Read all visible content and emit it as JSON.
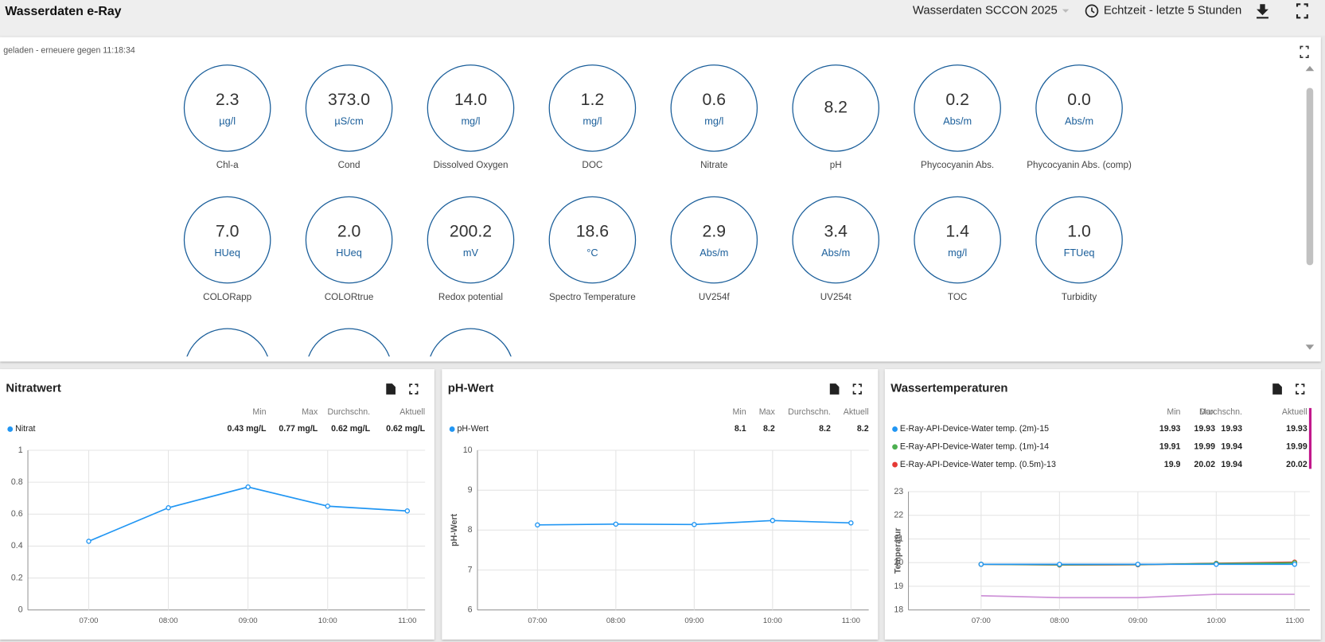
{
  "header": {
    "title": "Wasserdaten e-Ray",
    "dashboard": "Wasserdaten SCCON 2025",
    "time_range": "Echtzeit - letzte 5 Stunden"
  },
  "gauge_panel": {
    "status": "geladen - erneuere gegen 11:18:34",
    "gauges": [
      {
        "value": "2.3",
        "unit": "µg/l",
        "label": "Chl-a"
      },
      {
        "value": "373.0",
        "unit": "µS/cm",
        "label": "Cond"
      },
      {
        "value": "14.0",
        "unit": "mg/l",
        "label": "Dissolved Oxygen"
      },
      {
        "value": "1.2",
        "unit": "mg/l",
        "label": "DOC"
      },
      {
        "value": "0.6",
        "unit": "mg/l",
        "label": "Nitrate"
      },
      {
        "value": "8.2",
        "label": "pH"
      },
      {
        "value": "0.2",
        "unit": "Abs/m",
        "label": "Phycocyanin Abs."
      },
      {
        "value": "0.0",
        "unit": "Abs/m",
        "label": "Phycocyanin Abs. (comp)"
      },
      {
        "value": "7.0",
        "unit": "HUeq",
        "label": "COLORapp"
      },
      {
        "value": "2.0",
        "unit": "HUeq",
        "label": "COLORtrue"
      },
      {
        "value": "200.2",
        "unit": "mV",
        "label": "Redox potential"
      },
      {
        "value": "18.6",
        "unit": "°C",
        "label": "Spectro Temperature"
      },
      {
        "value": "2.9",
        "unit": "Abs/m",
        "label": "UV254f"
      },
      {
        "value": "3.4",
        "unit": "Abs/m",
        "label": "UV254t"
      },
      {
        "value": "1.4",
        "unit": "mg/l",
        "label": "TOC"
      },
      {
        "value": "1.0",
        "unit": "FTUeq",
        "label": "Turbidity"
      }
    ]
  },
  "chart_data": [
    {
      "type": "line",
      "title": "Nitratwert",
      "categories": [
        "07:00",
        "08:00",
        "09:00",
        "10:00",
        "11:00"
      ],
      "ylim": [
        0,
        1
      ],
      "yticks": [
        0,
        0.2,
        0.4,
        0.6,
        0.8,
        1
      ],
      "grid": true,
      "stats_headers": [
        "Min",
        "Max",
        "Durchschn.",
        "Aktuell"
      ],
      "series": [
        {
          "name": "Nitrat",
          "color": "#2196f3",
          "markers": true,
          "values": [
            0.43,
            0.64,
            0.77,
            0.65,
            0.62
          ],
          "stats": [
            "0.43 mg/L",
            "0.77 mg/L",
            "0.62 mg/L",
            "0.62 mg/L"
          ]
        }
      ]
    },
    {
      "type": "line",
      "title": "pH-Wert",
      "y_label": "pH-Wert",
      "categories": [
        "07:00",
        "08:00",
        "09:00",
        "10:00",
        "11:00"
      ],
      "ylim": [
        6,
        10
      ],
      "yticks": [
        6,
        7,
        8,
        9,
        10
      ],
      "grid": true,
      "stats_headers": [
        "Min",
        "Max",
        "Durchschn.",
        "Aktuell"
      ],
      "series": [
        {
          "name": "pH-Wert",
          "color": "#2196f3",
          "markers": true,
          "values": [
            8.13,
            8.15,
            8.14,
            8.24,
            8.18
          ],
          "stats": [
            "8.1",
            "8.2",
            "8.2",
            "8.2"
          ]
        }
      ]
    },
    {
      "type": "line",
      "title": "Wassertemperaturen",
      "y_label": "Temperatur",
      "categories": [
        "07:00",
        "08:00",
        "09:00",
        "10:00",
        "11:00"
      ],
      "ylim": [
        18,
        23
      ],
      "yticks": [
        18,
        19,
        20,
        21,
        22,
        23
      ],
      "grid": true,
      "stats_headers": [
        "Min",
        "Max",
        "Durchschn.",
        "Aktuell"
      ],
      "series": [
        {
          "name": "E-Ray-API-Device-Water temp. (2m)-15",
          "color": "#2196f3",
          "markers": true,
          "values": [
            19.93,
            19.93,
            19.93,
            19.93,
            19.93
          ],
          "stats": [
            "19.93",
            "19.93",
            "19.93",
            "19.93"
          ]
        },
        {
          "name": "E-Ray-API-Device-Water temp. (1m)-14",
          "color": "#4caf50",
          "markers": true,
          "values": [
            19.93,
            19.91,
            19.92,
            19.96,
            19.99
          ],
          "stats": [
            "19.91",
            "19.99",
            "19.94",
            "19.99"
          ]
        },
        {
          "name": "E-Ray-API-Device-Water temp. (0.5m)-13",
          "color": "#e53935",
          "markers": true,
          "values": [
            19.93,
            19.9,
            19.91,
            19.97,
            20.02
          ],
          "stats": [
            "19.9",
            "20.02",
            "19.94",
            "20.02"
          ]
        },
        {
          "color": "#ce93d8",
          "markers": false,
          "values": [
            18.6,
            18.52,
            18.52,
            18.66,
            18.66
          ]
        }
      ]
    }
  ]
}
